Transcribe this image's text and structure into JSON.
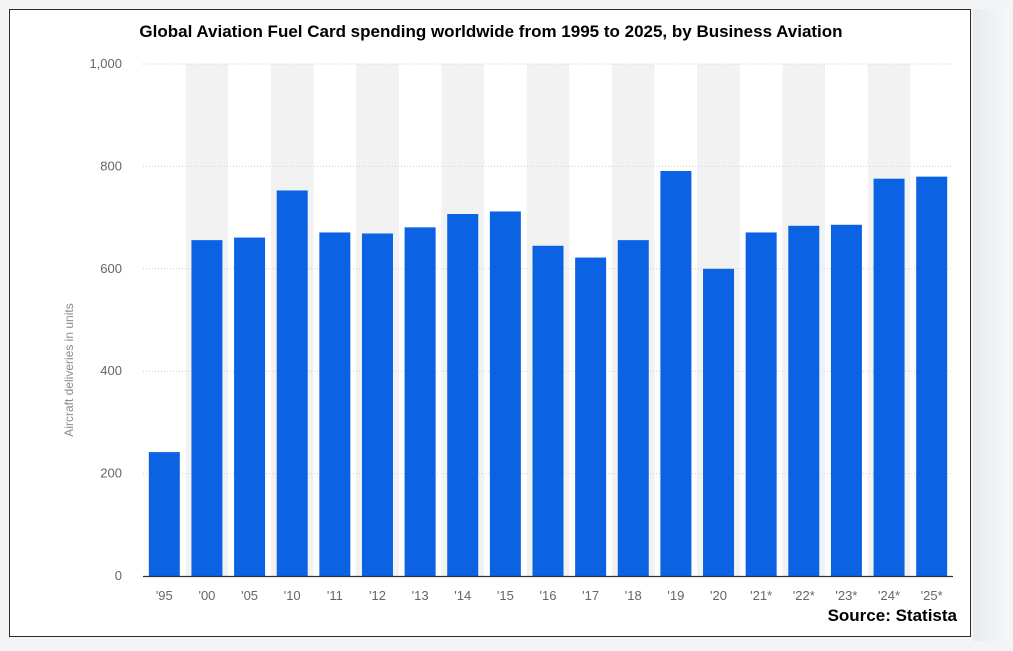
{
  "chart_data": {
    "type": "bar",
    "title": "Global Aviation Fuel Card spending worldwide from 1995 to 2025, by Business Aviation",
    "ylabel": "Aircraft deliveries in units",
    "xlabel": "",
    "categories": [
      "'95",
      "'00",
      "'05",
      "'10",
      "'11",
      "'12",
      "'13",
      "'14",
      "'15",
      "'16",
      "'17",
      "'18",
      "'19",
      "'20",
      "'21*",
      "'22*",
      "'23*",
      "'24*",
      "'25*"
    ],
    "values": [
      242,
      656,
      661,
      753,
      671,
      669,
      681,
      707,
      712,
      645,
      622,
      656,
      791,
      600,
      671,
      684,
      686,
      776,
      780
    ],
    "ylim": [
      0,
      1000
    ],
    "yticks": [
      0,
      200,
      400,
      600,
      800,
      1000
    ],
    "ytick_labels": [
      "0",
      "200",
      "400",
      "600",
      "800",
      "1,000"
    ],
    "grid": true,
    "bar_color": "#0b63e3",
    "band_color": "#f2f2f2",
    "source": "Source: Statista"
  }
}
